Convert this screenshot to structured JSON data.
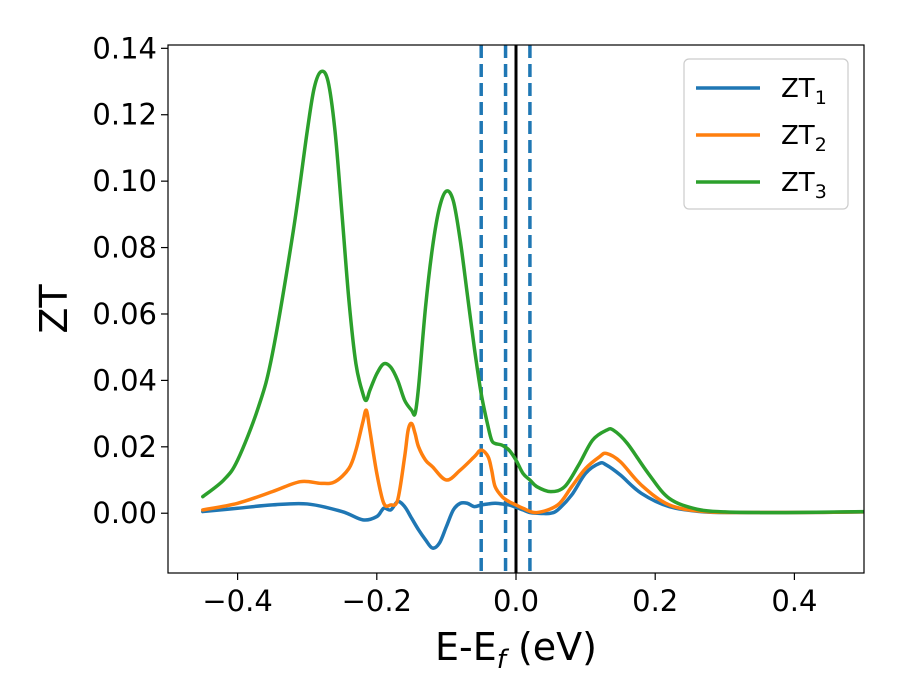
{
  "chart_data": {
    "type": "line",
    "title": "",
    "xlabel": {
      "main": "E-E",
      "sub": "f",
      "suffix": " (eV)"
    },
    "ylabel": "ZT",
    "xlim": [
      -0.5,
      0.5
    ],
    "ylim": [
      -0.018,
      0.141
    ],
    "xticks": [
      -0.4,
      -0.2,
      0.0,
      0.2,
      0.4
    ],
    "xtick_labels": [
      "−0.4",
      "−0.2",
      "0.0",
      "0.2",
      "0.4"
    ],
    "yticks": [
      0.0,
      0.02,
      0.04,
      0.06,
      0.08,
      0.1,
      0.12,
      0.14
    ],
    "ytick_labels": [
      "0.00",
      "0.02",
      "0.04",
      "0.06",
      "0.08",
      "0.10",
      "0.12",
      "0.14"
    ],
    "grid": false,
    "legend_position": "top-right",
    "vlines": [
      {
        "x": 0.0,
        "style": "solid",
        "color": "#000000"
      },
      {
        "x": -0.05,
        "style": "dashed",
        "color": "#1f77b4"
      },
      {
        "x": -0.015,
        "style": "dashed",
        "color": "#1f77b4"
      },
      {
        "x": 0.02,
        "style": "dashed",
        "color": "#1f77b4"
      }
    ],
    "series": [
      {
        "name": "ZT",
        "sub": "1",
        "color": "#1f77b4",
        "x": [
          -0.45,
          -0.4,
          -0.35,
          -0.3,
          -0.25,
          -0.22,
          -0.2,
          -0.19,
          -0.18,
          -0.17,
          -0.16,
          -0.15,
          -0.14,
          -0.13,
          -0.12,
          -0.11,
          -0.1,
          -0.09,
          -0.08,
          -0.07,
          -0.06,
          -0.05,
          -0.04,
          -0.03,
          -0.02,
          -0.01,
          0.0,
          0.01,
          0.02,
          0.03,
          0.04,
          0.05,
          0.06,
          0.08,
          0.1,
          0.12,
          0.13,
          0.15,
          0.18,
          0.22,
          0.27,
          0.32,
          0.4,
          0.5
        ],
        "y": [
          0.0005,
          0.0015,
          0.0025,
          0.0028,
          0.0005,
          -0.002,
          -0.001,
          0.0015,
          0.001,
          0.0035,
          0.002,
          -0.0015,
          -0.005,
          -0.008,
          -0.0105,
          -0.009,
          -0.004,
          0.001,
          0.003,
          0.003,
          0.002,
          0.0025,
          0.0028,
          0.003,
          0.0028,
          0.0025,
          0.0018,
          0.001,
          0.0002,
          0.0,
          -0.0001,
          0.0,
          0.001,
          0.0055,
          0.012,
          0.015,
          0.0145,
          0.0115,
          0.006,
          0.002,
          0.0004,
          0.0002,
          0.0002,
          0.0004
        ]
      },
      {
        "name": "ZT",
        "sub": "2",
        "color": "#ff7f0e",
        "x": [
          -0.45,
          -0.4,
          -0.35,
          -0.31,
          -0.28,
          -0.26,
          -0.24,
          -0.23,
          -0.22,
          -0.215,
          -0.21,
          -0.2,
          -0.19,
          -0.18,
          -0.17,
          -0.16,
          -0.155,
          -0.15,
          -0.145,
          -0.14,
          -0.13,
          -0.12,
          -0.1,
          -0.08,
          -0.06,
          -0.05,
          -0.04,
          -0.035,
          -0.03,
          -0.02,
          -0.01,
          0.0,
          0.01,
          0.03,
          0.06,
          0.08,
          0.1,
          0.12,
          0.13,
          0.15,
          0.18,
          0.22,
          0.27,
          0.32,
          0.4,
          0.5
        ],
        "y": [
          0.001,
          0.003,
          0.0065,
          0.0095,
          0.009,
          0.0095,
          0.0135,
          0.019,
          0.0275,
          0.031,
          0.025,
          0.012,
          0.003,
          0.0025,
          0.004,
          0.017,
          0.025,
          0.027,
          0.024,
          0.02,
          0.016,
          0.014,
          0.01,
          0.013,
          0.017,
          0.019,
          0.017,
          0.013,
          0.008,
          0.005,
          0.0035,
          0.0025,
          0.0015,
          0.0002,
          0.0025,
          0.008,
          0.0135,
          0.017,
          0.018,
          0.0155,
          0.0085,
          0.0025,
          0.0005,
          0.0002,
          0.0002,
          0.0004
        ]
      },
      {
        "name": "ZT",
        "sub": "3",
        "color": "#2ca02c",
        "x": [
          -0.45,
          -0.42,
          -0.4,
          -0.37,
          -0.35,
          -0.32,
          -0.3,
          -0.29,
          -0.28,
          -0.27,
          -0.26,
          -0.25,
          -0.24,
          -0.23,
          -0.22,
          -0.215,
          -0.21,
          -0.2,
          -0.19,
          -0.18,
          -0.17,
          -0.16,
          -0.15,
          -0.145,
          -0.14,
          -0.13,
          -0.12,
          -0.11,
          -0.1,
          -0.09,
          -0.08,
          -0.07,
          -0.06,
          -0.05,
          -0.04,
          -0.035,
          -0.03,
          -0.02,
          -0.01,
          0.0,
          0.01,
          0.02,
          0.03,
          0.05,
          0.07,
          0.09,
          0.11,
          0.13,
          0.14,
          0.16,
          0.19,
          0.22,
          0.26,
          0.3,
          0.35,
          0.4,
          0.5
        ],
        "y": [
          0.005,
          0.01,
          0.016,
          0.032,
          0.048,
          0.085,
          0.115,
          0.128,
          0.133,
          0.13,
          0.115,
          0.09,
          0.064,
          0.045,
          0.036,
          0.034,
          0.037,
          0.042,
          0.045,
          0.044,
          0.04,
          0.034,
          0.031,
          0.03,
          0.038,
          0.062,
          0.08,
          0.092,
          0.097,
          0.094,
          0.082,
          0.066,
          0.05,
          0.036,
          0.026,
          0.022,
          0.021,
          0.0205,
          0.019,
          0.016,
          0.012,
          0.01,
          0.008,
          0.0065,
          0.008,
          0.0145,
          0.022,
          0.025,
          0.025,
          0.021,
          0.012,
          0.0045,
          0.0012,
          0.0004,
          0.0002,
          0.0002,
          0.0005
        ]
      }
    ]
  }
}
